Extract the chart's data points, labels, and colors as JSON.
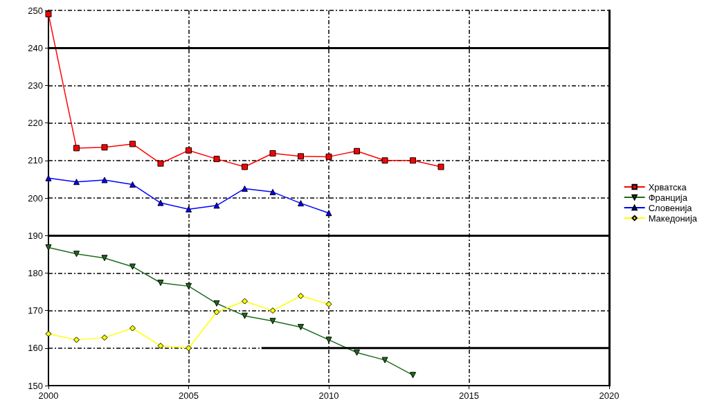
{
  "chart_data": {
    "type": "line",
    "x": [
      2000,
      2001,
      2002,
      2003,
      2004,
      2005,
      2006,
      2007,
      2008,
      2009,
      2010,
      2011,
      2012,
      2013,
      2014
    ],
    "series": [
      {
        "name": "Хрватска",
        "color": "#ff0000",
        "marker": "square",
        "values": [
          249,
          213.3,
          213.5,
          214.4,
          209.2,
          212.7,
          210.4,
          208.3,
          211.9,
          211.1,
          211,
          212.5,
          210,
          210,
          208.3
        ]
      },
      {
        "name": "Франција",
        "color": "#1f6b1f",
        "marker": "triangle-down",
        "values": [
          186.8,
          185.1,
          184,
          181.7,
          177.4,
          176.5,
          171.9,
          168.6,
          167.2,
          165.6,
          162.2,
          158.8,
          156.8,
          152.8,
          null
        ]
      },
      {
        "name": "Словенија",
        "color": "#0000ff",
        "marker": "triangle",
        "values": [
          205.3,
          204.3,
          204.8,
          203.6,
          198.7,
          197,
          198,
          202.5,
          201.6,
          198.6,
          196,
          null,
          null,
          null,
          null
        ]
      },
      {
        "name": "Македонија",
        "color": "#ffff00",
        "marker": "diamond",
        "values": [
          163.8,
          162.2,
          162.8,
          165.3,
          160.6,
          160,
          169.6,
          172.5,
          170,
          173.9,
          171.7,
          null,
          null,
          null,
          null
        ]
      },
      {
        "color": "#000000",
        "marker": "none",
        "x": [
          2007.6,
          2020
        ],
        "values": [
          160,
          160
        ]
      }
    ],
    "ref_lines": [
      {
        "axis": "y",
        "value": 240,
        "color": "#000000"
      },
      {
        "axis": "y",
        "value": 190,
        "color": "#000000"
      }
    ],
    "xlim": [
      2000,
      2020
    ],
    "xticks": [
      2000,
      2005,
      2010,
      2015,
      2020
    ],
    "ylim": [
      150,
      250
    ],
    "yticks": [
      150,
      160,
      170,
      180,
      190,
      200,
      210,
      220,
      230,
      240,
      250
    ],
    "grid": true,
    "legend": "right",
    "line_style": "solid"
  }
}
